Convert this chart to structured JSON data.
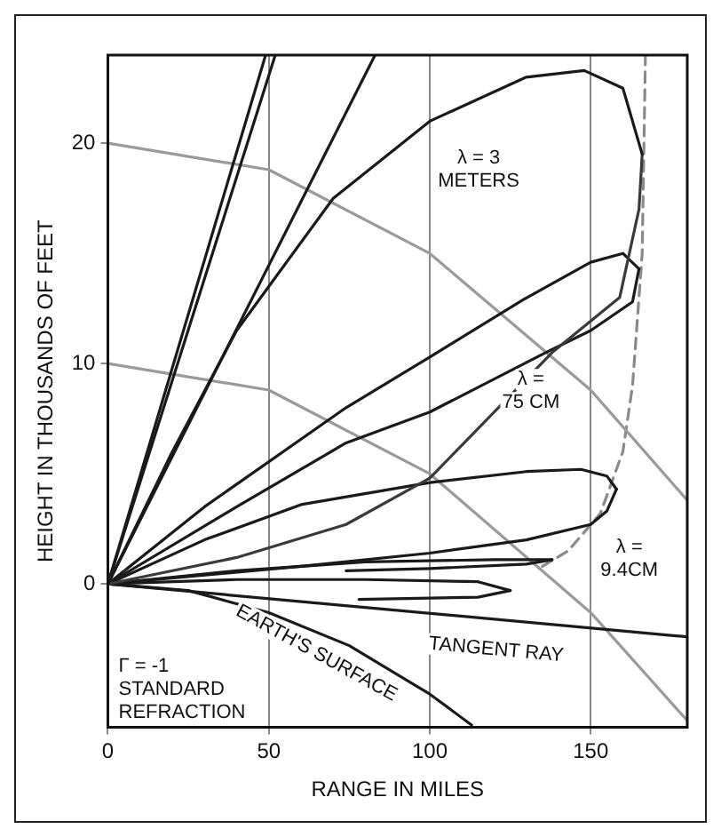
{
  "chart_data": {
    "type": "line",
    "xlabel": "RANGE IN MILES",
    "ylabel": "HEIGHT IN THOUSANDS OF FEET",
    "xlim": [
      0,
      180
    ],
    "ylim": [
      -6.5,
      24
    ],
    "xticks": [
      0,
      50,
      100,
      150
    ],
    "yticks": [
      0,
      10,
      20
    ],
    "grid": "x",
    "legend": false,
    "marker": "none",
    "series": [
      {
        "color": "#1a1a1a",
        "x": [
          0,
          20,
          40,
          70,
          100,
          130,
          148,
          160,
          166
        ],
        "values": [
          0,
          6,
          11.5,
          17.5,
          21,
          23,
          23.3,
          22.5,
          19.5
        ]
      },
      {
        "color": "#3a3a3a",
        "x": [
          0,
          40,
          74,
          100,
          138,
          159,
          165,
          166
        ],
        "values": [
          0,
          1.2,
          2.7,
          4.8,
          10.5,
          13,
          17,
          19.5
        ]
      },
      {
        "color": "#1a1a1a",
        "x": [
          0,
          30,
          74,
          100,
          129,
          150,
          160,
          165
        ],
        "values": [
          0,
          3.5,
          8,
          10.3,
          12.9,
          14.6,
          15,
          14.3
        ]
      },
      {
        "color": "#1a1a1a",
        "x": [
          0,
          40,
          74,
          100,
          136,
          150,
          163,
          165
        ],
        "values": [
          0,
          3.5,
          6.4,
          7.8,
          10.5,
          11.5,
          12.8,
          14.3
        ]
      },
      {
        "color": "#1a1a1a",
        "x": [
          0,
          30,
          60,
          100,
          130,
          147,
          155,
          158
        ],
        "values": [
          0,
          2,
          3.6,
          4.6,
          5.1,
          5.2,
          4.9,
          4.3
        ]
      },
      {
        "color": "#1a1a1a",
        "x": [
          0,
          60,
          100,
          130,
          150,
          155,
          158
        ],
        "values": [
          0,
          0.8,
          1.4,
          2,
          2.7,
          3.3,
          4.3
        ]
      },
      {
        "color": "#1a1a1a",
        "x": [
          0,
          40,
          80,
          120,
          138
        ],
        "values": [
          0,
          0.6,
          1,
          1.1,
          1.1
        ]
      },
      {
        "color": "#1a1a1a",
        "x": [
          74,
          100,
          130,
          138
        ],
        "values": [
          0.6,
          0.7,
          0.9,
          1.1
        ]
      },
      {
        "color": "#1a1a1a",
        "x": [
          0,
          40,
          80,
          115,
          125
        ],
        "values": [
          0,
          0.2,
          0.2,
          0.1,
          -0.3
        ]
      },
      {
        "color": "#1a1a1a",
        "x": [
          78,
          115,
          125
        ],
        "values": [
          -0.7,
          -0.6,
          -0.3
        ]
      },
      {
        "color": "#1a1a1a",
        "x": [
          0,
          49
        ],
        "values": [
          0,
          24
        ]
      },
      {
        "color": "#1a1a1a",
        "x": [
          0,
          52
        ],
        "values": [
          0,
          24
        ]
      },
      {
        "color": "#1a1a1a",
        "x": [
          0,
          83
        ],
        "values": [
          0,
          24
        ]
      },
      {
        "color": "#1a1a1a",
        "x": [
          0,
          180
        ],
        "values": [
          0,
          -2.4
        ]
      },
      {
        "color": "#1a1a1a",
        "x": [
          0,
          25,
          50,
          75,
          100,
          113
        ],
        "values": [
          0,
          -0.3,
          -1.3,
          -2.8,
          -5,
          -6.4
        ]
      },
      {
        "color": "#9a9a9a",
        "x": [
          0,
          50,
          100,
          150,
          180
        ],
        "values": [
          20,
          18.8,
          15,
          8.8,
          3.8
        ]
      },
      {
        "color": "#9a9a9a",
        "x": [
          0,
          50,
          100,
          150,
          180
        ],
        "values": [
          10,
          8.8,
          5,
          -1.3,
          -6.2
        ]
      },
      {
        "color": "#8a8a8a",
        "line_style": "dashed",
        "x": [
          135,
          143,
          153,
          160,
          163,
          166,
          167
        ],
        "values": [
          0.8,
          1.5,
          3.2,
          6,
          9,
          15,
          24
        ]
      }
    ],
    "annotations": [
      "λ = 3\nMETERS",
      "λ =\n75 CM",
      "λ =\n9.4CM",
      "TANGENT RAY",
      "EARTH'S SURFACE",
      "Γ = -1\nSTANDARD\nREFRACTION"
    ]
  }
}
